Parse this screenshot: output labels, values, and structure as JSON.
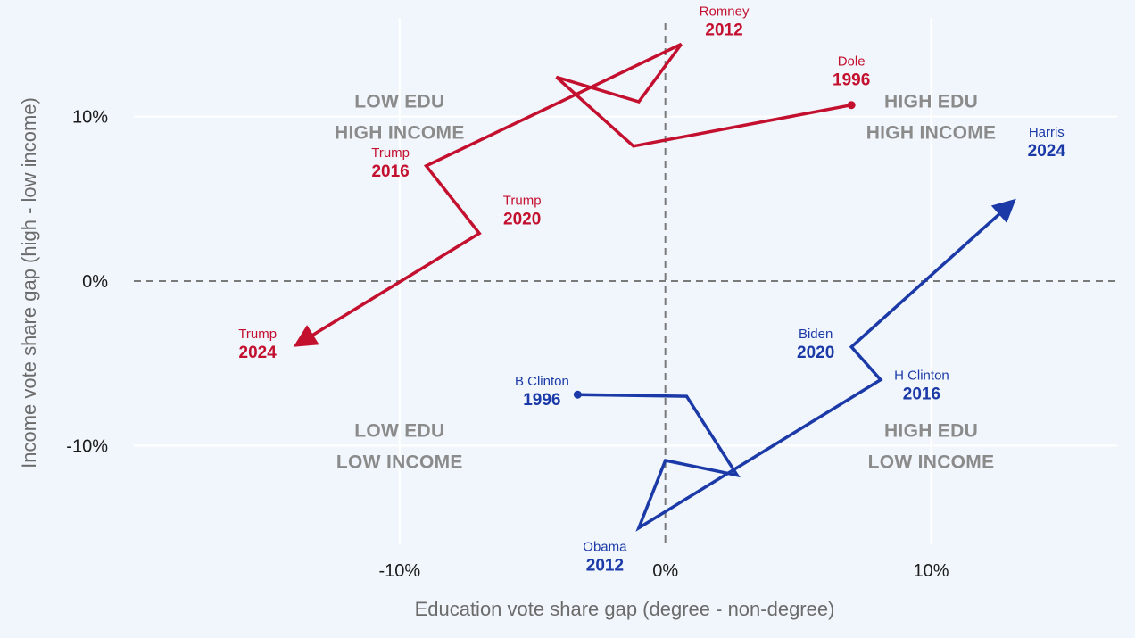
{
  "chart_data": {
    "type": "line",
    "xlabel": "Education vote share gap (degree - non-degree)",
    "ylabel": "Income vote share gap (high - low income)",
    "xlim": [
      -20,
      17
    ],
    "ylim": [
      -16,
      16
    ],
    "x_ticks": [
      {
        "value": -10,
        "label": "-10%"
      },
      {
        "value": 0,
        "label": "0%"
      },
      {
        "value": 10,
        "label": "10%"
      }
    ],
    "y_ticks": [
      {
        "value": 10,
        "label": "10%"
      },
      {
        "value": 0,
        "label": "0%"
      },
      {
        "value": -10,
        "label": "-10%"
      }
    ],
    "grid": true,
    "reference_lines": [
      {
        "axis": "x",
        "value": 0,
        "style": "dashed"
      },
      {
        "axis": "y",
        "value": 0,
        "style": "dashed"
      }
    ],
    "quadrant_labels": [
      {
        "x": -10,
        "y": 10,
        "line1": "LOW EDU",
        "line2": "HIGH INCOME"
      },
      {
        "x": 10,
        "y": 10,
        "line1": "HIGH EDU",
        "line2": "HIGH INCOME"
      },
      {
        "x": -10,
        "y": -10,
        "line1": "LOW EDU",
        "line2": "LOW INCOME"
      },
      {
        "x": 10,
        "y": -10,
        "line1": "HIGH EDU",
        "line2": "LOW INCOME"
      }
    ],
    "series": [
      {
        "color": "#c4102f",
        "points": [
          {
            "x": 7.0,
            "y": 10.7
          },
          {
            "x": -1.2,
            "y": 8.2
          },
          {
            "x": -4.1,
            "y": 12.4
          },
          {
            "x": -1.0,
            "y": 10.9
          },
          {
            "x": 0.6,
            "y": 14.4
          },
          {
            "x": -9.0,
            "y": 7.0
          },
          {
            "x": -7.0,
            "y": 2.9
          },
          {
            "x": -14.0,
            "y": -4.0
          }
        ],
        "labels": [
          {
            "point": 0,
            "name": "Dole",
            "year": "1996",
            "anchor": "above"
          },
          {
            "point": 4,
            "name": "Romney",
            "year": "2012",
            "anchor": "right"
          },
          {
            "point": 5,
            "name": "Trump",
            "year": "2016",
            "anchor": "left"
          },
          {
            "point": 6,
            "name": "Trump",
            "year": "2020",
            "anchor": "right"
          },
          {
            "point": 7,
            "name": "Trump",
            "year": "2024",
            "anchor": "left"
          }
        ]
      },
      {
        "color": "#1b3aa8",
        "points": [
          {
            "x": -3.3,
            "y": -6.9
          },
          {
            "x": 0.8,
            "y": -7.0
          },
          {
            "x": 2.7,
            "y": -11.8
          },
          {
            "x": 0.0,
            "y": -10.9
          },
          {
            "x": -1.0,
            "y": -15.0
          },
          {
            "x": 8.1,
            "y": -6.0
          },
          {
            "x": 7.0,
            "y": -4.0
          },
          {
            "x": 13.2,
            "y": 5.0
          }
        ],
        "labels": [
          {
            "point": 0,
            "name": "B Clinton",
            "year": "1996",
            "anchor": "left"
          },
          {
            "point": 4,
            "name": "Obama",
            "year": "2012",
            "anchor": "below"
          },
          {
            "point": 5,
            "name": "H Clinton",
            "year": "2016",
            "anchor": "below-right"
          },
          {
            "point": 6,
            "name": "Biden",
            "year": "2020",
            "anchor": "left"
          },
          {
            "point": 7,
            "name": "Harris",
            "year": "2024",
            "anchor": "above-right"
          }
        ]
      }
    ]
  }
}
